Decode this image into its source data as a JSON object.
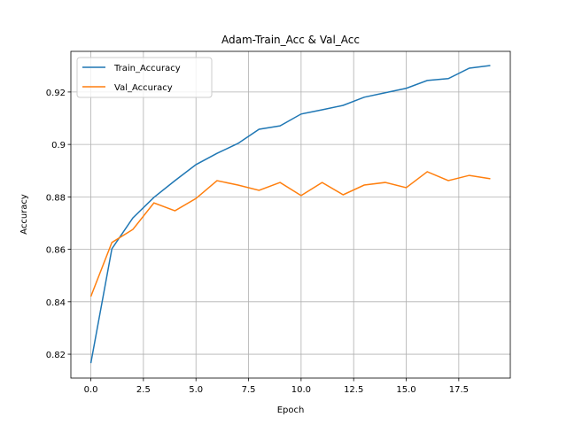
{
  "chart_data": {
    "type": "line",
    "title": "Adam-Train_Acc & Val_Acc",
    "xlabel": "Epoch",
    "ylabel": "Accuracy",
    "x": [
      0,
      1,
      2,
      3,
      4,
      5,
      6,
      7,
      8,
      9,
      10,
      11,
      12,
      13,
      14,
      15,
      16,
      17,
      18,
      19
    ],
    "series": [
      {
        "name": "Train_Accuracy",
        "color": "#1f77b4",
        "values": [
          0.8166,
          0.8602,
          0.872,
          0.8798,
          0.8862,
          0.8923,
          0.8966,
          0.9004,
          0.9058,
          0.9071,
          0.9116,
          0.9132,
          0.9149,
          0.918,
          0.9197,
          0.9214,
          0.9244,
          0.9251,
          0.9291,
          0.9301
        ]
      },
      {
        "name": "Val_Accuracy",
        "color": "#ff7f0e",
        "values": [
          0.842,
          0.8626,
          0.8676,
          0.8777,
          0.8747,
          0.8794,
          0.8862,
          0.8845,
          0.8825,
          0.8855,
          0.8805,
          0.8855,
          0.8808,
          0.8845,
          0.8855,
          0.8835,
          0.8896,
          0.8862,
          0.8882,
          0.8869
        ]
      }
    ],
    "xlim": [
      -0.95,
      19.95
    ],
    "xticks": [
      {
        "value": 0,
        "label": "0.0"
      },
      {
        "value": 2.5,
        "label": "2.5"
      },
      {
        "value": 5,
        "label": "5.0"
      },
      {
        "value": 7.5,
        "label": "7.5"
      },
      {
        "value": 10,
        "label": "10.0"
      },
      {
        "value": 12.5,
        "label": "12.5"
      },
      {
        "value": 15,
        "label": "15.0"
      },
      {
        "value": 17.5,
        "label": "17.5"
      }
    ],
    "ylim": [
      0.8109,
      0.9355
    ],
    "yticks": [
      0.82,
      0.84,
      0.86,
      0.88,
      0.9,
      0.92
    ],
    "grid": true,
    "legend": "upper left"
  }
}
